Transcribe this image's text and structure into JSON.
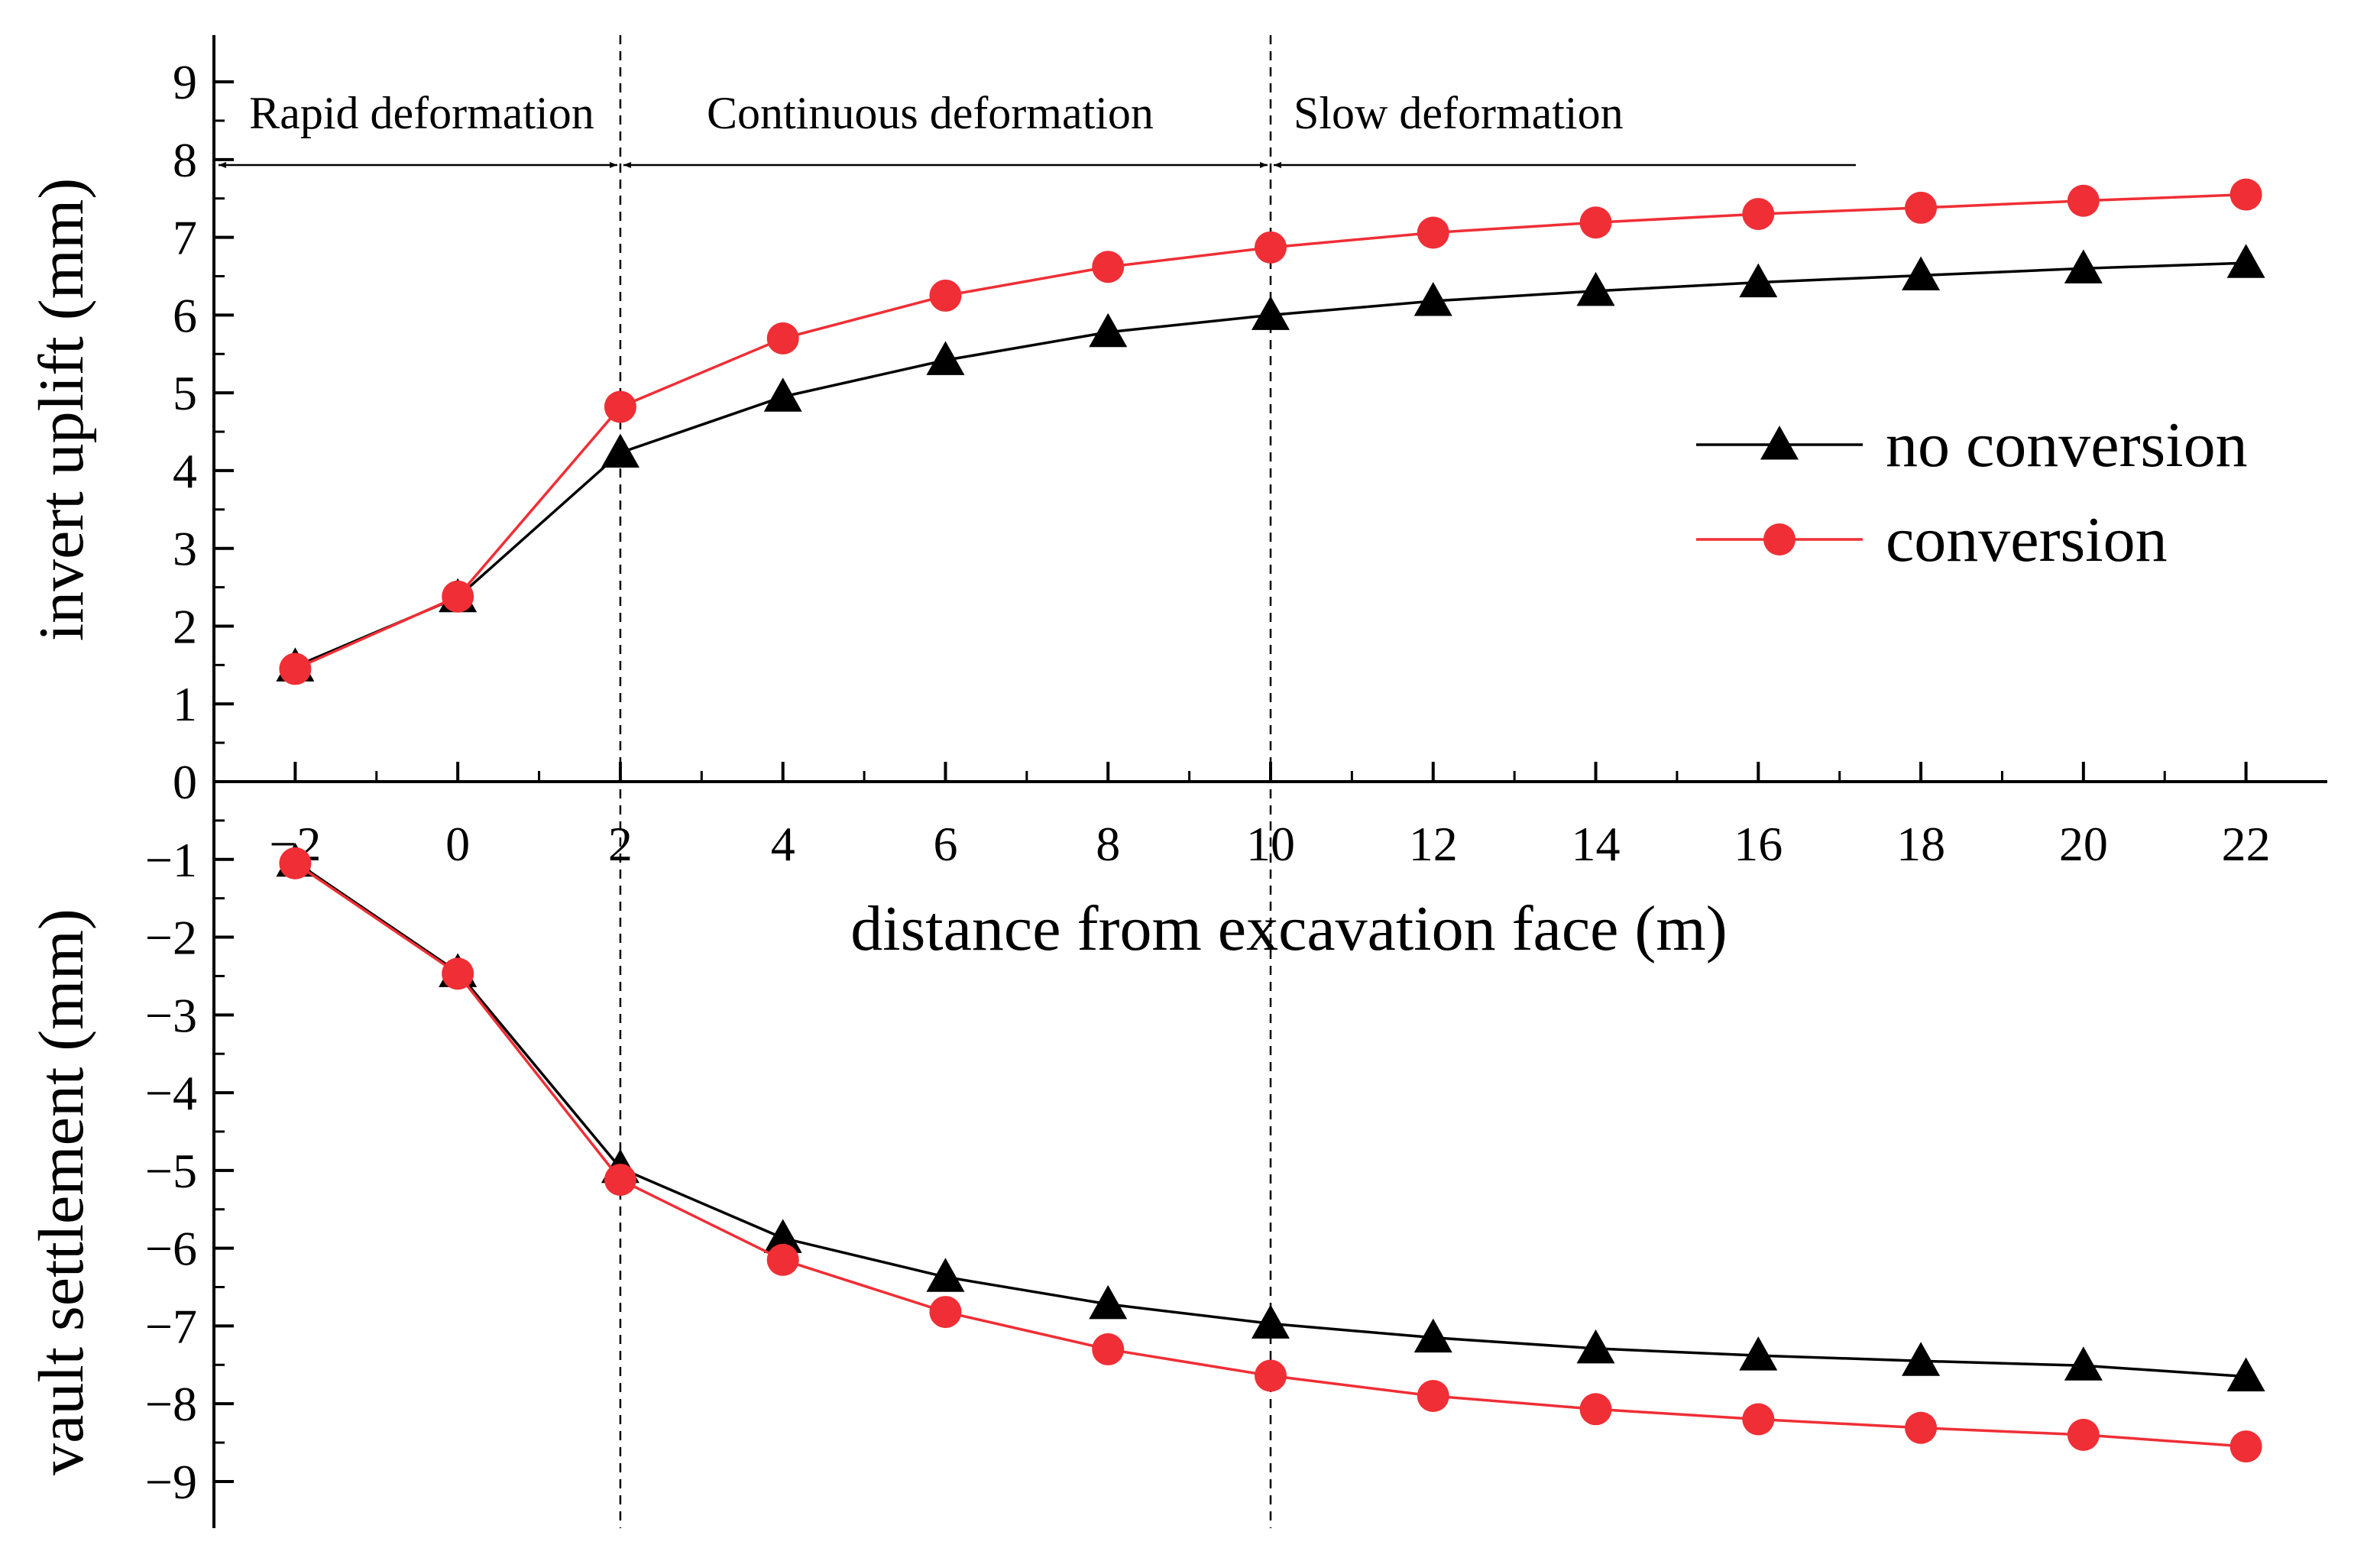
{
  "chart_data": {
    "type": "line",
    "xlabel": "distance from excavation face (m)",
    "ylabel_top": "invert uplift (mm)",
    "ylabel_bottom": "vault settlement (mm)",
    "x_ticks": [
      -2,
      0,
      2,
      4,
      6,
      8,
      10,
      12,
      14,
      16,
      18,
      20,
      22
    ],
    "x_tick_labels": [
      "−2",
      "0",
      "2",
      "4",
      "6",
      "8",
      "10",
      "12",
      "14",
      "16",
      "18",
      "20",
      "22"
    ],
    "xlim": [
      -3,
      23
    ],
    "ylim": [
      -9.6,
      9.6
    ],
    "y_ticks": [
      9,
      8,
      7,
      6,
      5,
      4,
      3,
      2,
      1,
      0,
      -1,
      -2,
      -3,
      -4,
      -5,
      -6,
      -7,
      -8,
      -9
    ],
    "y_tick_labels": [
      "9",
      "8",
      "7",
      "6",
      "5",
      "4",
      "3",
      "2",
      "1",
      "0",
      "−1",
      "−2",
      "−3",
      "−4",
      "−5",
      "−6",
      "−7",
      "−8",
      "−9"
    ],
    "x": [
      -2,
      0,
      2,
      4,
      6,
      8,
      10,
      12,
      14,
      16,
      18,
      20,
      22
    ],
    "series": [
      {
        "name": "no conversion",
        "color": "#000000",
        "marker": "triangle",
        "uplift": [
          1.48,
          2.37,
          4.23,
          4.95,
          5.42,
          5.78,
          6.0,
          6.18,
          6.31,
          6.42,
          6.51,
          6.6,
          6.67
        ],
        "settlement": [
          -1.03,
          -2.45,
          -4.97,
          -5.87,
          -6.37,
          -6.72,
          -6.97,
          -7.15,
          -7.29,
          -7.38,
          -7.45,
          -7.51,
          -7.65
        ]
      },
      {
        "name": "conversion",
        "color": "#f02e35",
        "marker": "circle",
        "uplift": [
          1.45,
          2.38,
          4.82,
          5.7,
          6.25,
          6.62,
          6.87,
          7.06,
          7.19,
          7.3,
          7.38,
          7.47,
          7.55
        ],
        "settlement": [
          -1.05,
          -2.47,
          -5.12,
          -6.15,
          -6.82,
          -7.3,
          -7.64,
          -7.9,
          -8.07,
          -8.2,
          -8.31,
          -8.4,
          -8.55
        ]
      }
    ],
    "dividers_x": [
      2,
      10
    ],
    "stages": [
      {
        "label": "Rapid deformation",
        "x_start": -3,
        "x_end": 2
      },
      {
        "label": "Continuous deformation",
        "x_start": 2,
        "x_end": 10
      },
      {
        "label": "Slow deformation",
        "x_start": 10,
        "x_end": 17.2
      }
    ],
    "stage_arrow_y": 7.93,
    "stage_label_y": 8.4,
    "legend_position": "right"
  }
}
